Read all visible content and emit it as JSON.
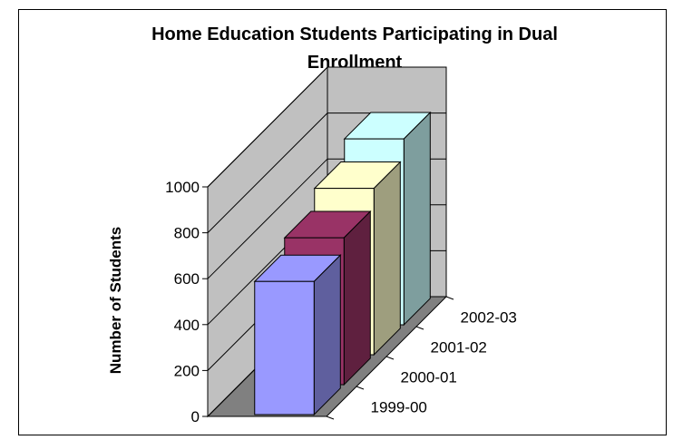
{
  "chart_data": {
    "type": "bar",
    "title": "Home Education Students Participating in Dual Enrollment",
    "title_lines": [
      "Home Education Students Participating in Dual",
      "Enrollment"
    ],
    "ylabel": "Number of Students",
    "xlabel": "",
    "categories": [
      "1999-00",
      "2000-01",
      "2001-02",
      "2002-03"
    ],
    "values": [
      580,
      640,
      725,
      810
    ],
    "ylim": [
      0,
      1000
    ],
    "yticks": [
      0,
      200,
      400,
      600,
      800,
      1000
    ],
    "grid": true,
    "legend": "none",
    "style": "3d-column",
    "colors": {
      "bars": [
        "#9999ff",
        "#993366",
        "#ffffcc",
        "#ccffff"
      ],
      "back_wall": "#c0c0c0",
      "floor": "#808080"
    }
  }
}
